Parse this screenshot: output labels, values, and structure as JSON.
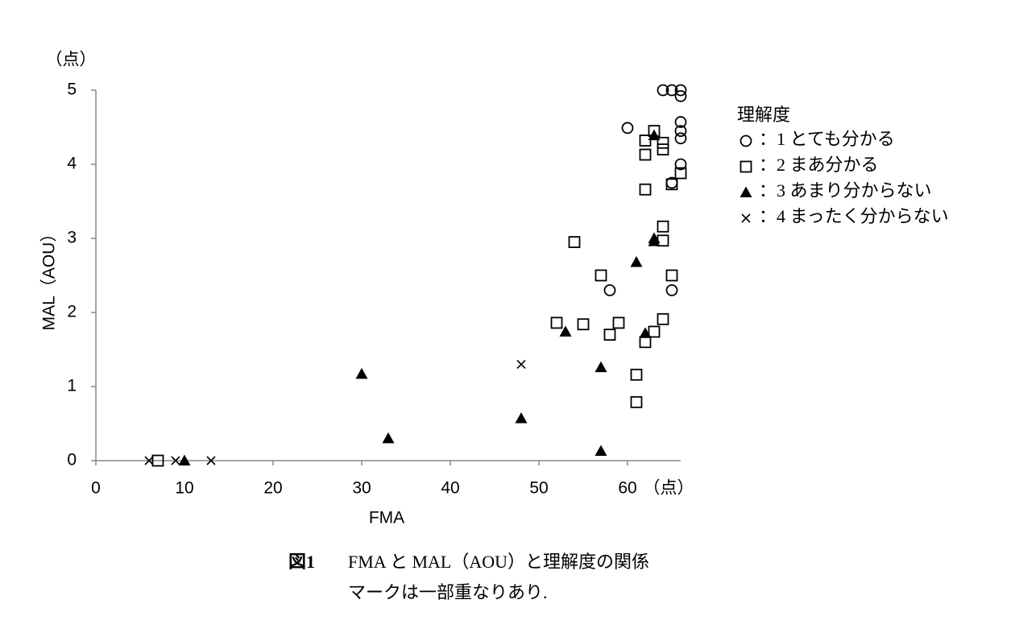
{
  "chart_data": {
    "type": "scatter",
    "y_unit": "（点）",
    "x_unit": "（点）",
    "xlabel": "FMA",
    "ylabel": "MAL（AOU）",
    "xlim": [
      0,
      66
    ],
    "xticks": [
      0,
      10,
      20,
      30,
      40,
      50,
      60
    ],
    "ylim": [
      0,
      5
    ],
    "yticks": [
      0,
      1,
      2,
      3,
      4,
      5
    ],
    "grid": false,
    "legend_title": "理解度",
    "legend": "right",
    "series": [
      {
        "name": "：1 とても分かる",
        "marker": "circle",
        "color": "#000000",
        "x": [
          64,
          65,
          66,
          66,
          60,
          66,
          66,
          66,
          66,
          65,
          58,
          65
        ],
        "values": [
          5,
          5,
          5,
          4.92,
          4.49,
          4.57,
          4.45,
          4.35,
          4,
          3.75,
          2.3,
          2.3
        ]
      },
      {
        "name": "：2 まあ分かる",
        "marker": "square",
        "color": "#000000",
        "x": [
          63,
          62,
          64,
          64,
          62,
          66,
          65,
          62,
          64,
          54,
          64,
          57,
          65,
          64,
          52,
          55,
          59,
          58,
          63,
          62,
          61,
          61,
          7
        ],
        "values": [
          4.45,
          4.32,
          4.29,
          4.2,
          4.13,
          3.88,
          3.73,
          3.66,
          3.16,
          2.95,
          2.97,
          2.5,
          2.5,
          1.91,
          1.86,
          1.84,
          1.86,
          1.7,
          1.74,
          1.6,
          1.16,
          0.79,
          0
        ]
      },
      {
        "name": "：3 あまり分からない",
        "marker": "triangle",
        "color": "#000000",
        "x": [
          63,
          63,
          63,
          61,
          53,
          62,
          57,
          30,
          48,
          33,
          57,
          10
        ],
        "values": [
          4.39,
          3,
          2.96,
          2.68,
          1.74,
          1.72,
          1.26,
          1.17,
          0.57,
          0.3,
          0.13,
          0
        ]
      },
      {
        "name": "：4 まったく分からない",
        "marker": "x",
        "color": "#000000",
        "x": [
          6,
          9,
          13,
          48
        ],
        "values": [
          0,
          0,
          0,
          1.3
        ]
      }
    ]
  },
  "caption": {
    "label": "図1",
    "text": "FMA と MAL（AOU）と理解度の関係",
    "note": "マークは一部重なりあり."
  }
}
